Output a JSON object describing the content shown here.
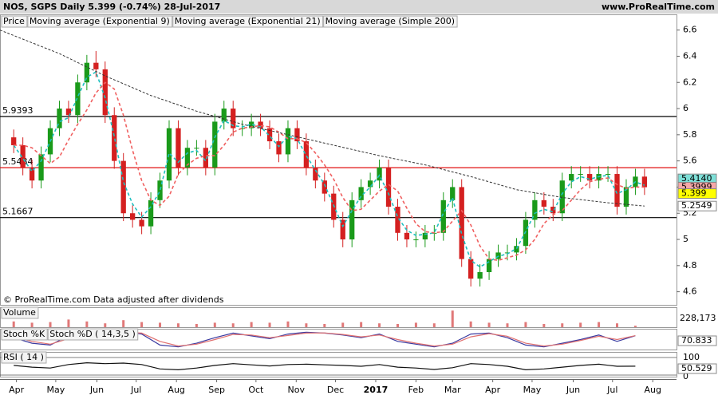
{
  "header": {
    "symbol_line": "NOS, SGPS   Daily   5.399 (-0.74%)   28-Jul-2017",
    "site": "www.ProRealTime.com"
  },
  "chart_data": [
    {
      "type": "candlestick",
      "name": "Price",
      "note": "© ProRealTime.com  Data adjusted after dividends",
      "up_color": "#1a9a1a",
      "down_color": "#d42020",
      "x": [
        0,
        1,
        2,
        3,
        4,
        5,
        6,
        7,
        8,
        9,
        10,
        11,
        12,
        13,
        14,
        15,
        16,
        17,
        18,
        19,
        20,
        21,
        22,
        23,
        24,
        25,
        26,
        27,
        28,
        29,
        30,
        31,
        32,
        33,
        34,
        35,
        36,
        37,
        38,
        39,
        40,
        41,
        42,
        43,
        44,
        45,
        46,
        47,
        48,
        49,
        50,
        51,
        52,
        53,
        54,
        55,
        56,
        57,
        58,
        59,
        60,
        61,
        62,
        63,
        64,
        65,
        66,
        67,
        68,
        69
      ],
      "open": [
        5.78,
        5.72,
        5.55,
        5.45,
        5.65,
        5.85,
        6.0,
        5.95,
        6.2,
        6.35,
        6.3,
        5.95,
        5.6,
        5.2,
        5.15,
        5.1,
        5.3,
        5.45,
        5.85,
        5.55,
        5.7,
        5.7,
        5.55,
        5.9,
        6.0,
        5.85,
        5.85,
        5.9,
        5.85,
        5.75,
        5.65,
        5.85,
        5.75,
        5.55,
        5.45,
        5.35,
        5.15,
        5.0,
        5.3,
        5.4,
        5.45,
        5.55,
        5.25,
        5.05,
        5.0,
        5.0,
        5.05,
        5.05,
        5.3,
        5.4,
        4.85,
        4.7,
        4.75,
        4.85,
        4.9,
        4.9,
        4.95,
        5.15,
        5.3,
        5.25,
        5.2,
        5.45,
        5.5,
        5.5,
        5.45,
        5.5,
        5.5,
        5.25,
        5.4,
        5.48
      ],
      "high": [
        5.84,
        5.78,
        5.61,
        5.71,
        5.91,
        6.06,
        6.06,
        6.26,
        6.41,
        6.44,
        6.36,
        6.01,
        5.66,
        5.26,
        5.21,
        5.36,
        5.51,
        5.91,
        5.91,
        5.76,
        5.76,
        5.76,
        5.96,
        6.06,
        6.06,
        5.91,
        5.96,
        5.96,
        5.91,
        5.81,
        5.91,
        5.91,
        5.81,
        5.61,
        5.51,
        5.41,
        5.21,
        5.36,
        5.46,
        5.51,
        5.61,
        5.61,
        5.31,
        5.11,
        5.06,
        5.11,
        5.11,
        5.36,
        5.46,
        5.46,
        4.91,
        4.81,
        4.91,
        4.96,
        4.96,
        5.01,
        5.21,
        5.36,
        5.36,
        5.31,
        5.51,
        5.56,
        5.56,
        5.56,
        5.56,
        5.56,
        5.56,
        5.46,
        5.54,
        5.54
      ],
      "low": [
        5.66,
        5.49,
        5.39,
        5.39,
        5.59,
        5.79,
        5.89,
        5.89,
        6.14,
        6.24,
        5.89,
        5.54,
        5.14,
        5.09,
        5.04,
        5.04,
        5.24,
        5.39,
        5.49,
        5.49,
        5.64,
        5.49,
        5.49,
        5.84,
        5.79,
        5.79,
        5.79,
        5.79,
        5.69,
        5.59,
        5.59,
        5.69,
        5.49,
        5.39,
        5.29,
        5.09,
        4.94,
        4.94,
        5.24,
        5.34,
        5.39,
        5.19,
        4.99,
        4.94,
        4.94,
        4.94,
        4.99,
        4.99,
        5.24,
        4.79,
        4.64,
        4.64,
        4.69,
        4.79,
        4.84,
        4.84,
        4.89,
        5.09,
        5.19,
        5.14,
        5.14,
        5.39,
        5.44,
        5.39,
        5.39,
        5.44,
        5.19,
        5.19,
        5.34,
        5.34
      ],
      "close": [
        5.72,
        5.55,
        5.45,
        5.65,
        5.85,
        6.0,
        5.95,
        6.2,
        6.35,
        6.3,
        5.95,
        5.6,
        5.2,
        5.15,
        5.1,
        5.3,
        5.45,
        5.85,
        5.55,
        5.7,
        5.7,
        5.55,
        5.9,
        6.0,
        5.85,
        5.85,
        5.9,
        5.85,
        5.75,
        5.65,
        5.85,
        5.75,
        5.55,
        5.45,
        5.35,
        5.15,
        5.0,
        5.3,
        5.4,
        5.45,
        5.55,
        5.25,
        5.05,
        5.0,
        5.0,
        5.05,
        5.05,
        5.3,
        5.4,
        4.85,
        4.7,
        4.75,
        4.85,
        4.9,
        4.9,
        4.95,
        5.15,
        5.3,
        5.25,
        5.2,
        5.45,
        5.5,
        5.5,
        5.45,
        5.5,
        5.5,
        5.25,
        5.4,
        5.48,
        5.399
      ],
      "series": [
        {
          "name": "Moving average (Exponential 9)",
          "color": "#20c0c0",
          "label_fill": "#7ee0d8",
          "last_label": "5.4140",
          "x": [
            0,
            1,
            2,
            3,
            4,
            5,
            6,
            7,
            8,
            9,
            10,
            11,
            12,
            13,
            14,
            15,
            16,
            17,
            18,
            19,
            20,
            21,
            22,
            23,
            24,
            25,
            26,
            27,
            28,
            29,
            30,
            31,
            32,
            33,
            34,
            35,
            36,
            37,
            38,
            39,
            40,
            41,
            42,
            43,
            44,
            45,
            46,
            47,
            48,
            49,
            50,
            51,
            52,
            53,
            54,
            55,
            56,
            57,
            58,
            59,
            60,
            61,
            62,
            63,
            64,
            65,
            66,
            67,
            68,
            69
          ],
          "values": [
            5.72,
            5.62,
            5.52,
            5.6,
            5.75,
            5.9,
            5.93,
            6.09,
            6.24,
            6.28,
            6.08,
            5.79,
            5.44,
            5.27,
            5.17,
            5.25,
            5.37,
            5.66,
            5.59,
            5.66,
            5.68,
            5.6,
            5.78,
            5.91,
            5.87,
            5.86,
            5.88,
            5.86,
            5.79,
            5.71,
            5.79,
            5.77,
            5.64,
            5.53,
            5.42,
            5.26,
            5.1,
            5.22,
            5.33,
            5.4,
            5.49,
            5.35,
            5.17,
            5.07,
            5.03,
            5.04,
            5.05,
            5.2,
            5.32,
            5.04,
            4.84,
            4.79,
            4.83,
            4.87,
            4.89,
            4.93,
            5.06,
            5.2,
            5.23,
            5.21,
            5.35,
            5.44,
            5.48,
            5.46,
            5.48,
            5.49,
            5.35,
            5.38,
            5.44,
            5.414
          ]
        },
        {
          "name": "Moving average (Exponential 21)",
          "color": "#f06060",
          "label_fill": "#f5a8a8",
          "last_label": "5.3999",
          "x": [
            0,
            1,
            2,
            3,
            4,
            5,
            6,
            7,
            8,
            9,
            10,
            11,
            12,
            13,
            14,
            15,
            16,
            17,
            18,
            19,
            20,
            21,
            22,
            23,
            24,
            25,
            26,
            27,
            28,
            29,
            30,
            31,
            32,
            33,
            34,
            35,
            36,
            37,
            38,
            39,
            40,
            41,
            42,
            43,
            44,
            45,
            46,
            47,
            48,
            49,
            50,
            51,
            52,
            53,
            54,
            55,
            56,
            57,
            58,
            59,
            60,
            61,
            62,
            63,
            64,
            65,
            66,
            67,
            68,
            69
          ],
          "values": [
            5.72,
            5.72,
            5.7,
            5.64,
            5.58,
            5.63,
            5.76,
            5.88,
            5.99,
            6.12,
            6.2,
            6.15,
            5.95,
            5.68,
            5.45,
            5.3,
            5.26,
            5.33,
            5.5,
            5.57,
            5.62,
            5.64,
            5.64,
            5.72,
            5.82,
            5.85,
            5.86,
            5.87,
            5.86,
            5.82,
            5.77,
            5.77,
            5.74,
            5.66,
            5.57,
            5.46,
            5.32,
            5.22,
            5.23,
            5.3,
            5.37,
            5.42,
            5.37,
            5.24,
            5.12,
            5.06,
            5.05,
            5.06,
            5.14,
            5.22,
            5.11,
            4.95,
            4.85,
            4.84,
            4.86,
            4.88,
            4.92,
            5.0,
            5.12,
            5.19,
            5.22,
            5.3,
            5.38,
            5.44,
            5.46,
            5.47,
            5.42,
            5.39,
            5.4,
            5.3999
          ]
        },
        {
          "name": "Moving average (Simple 200)",
          "color": "#333333",
          "label_fill": "#ffffff",
          "dashed": true,
          "last_label": "5.2549",
          "x": [
            -1.5,
            5,
            10,
            15,
            20,
            25,
            30,
            35,
            40,
            45,
            50,
            55,
            60,
            65,
            69
          ],
          "values": [
            6.6,
            6.42,
            6.25,
            6.1,
            5.98,
            5.88,
            5.8,
            5.72,
            5.64,
            5.57,
            5.48,
            5.38,
            5.32,
            5.28,
            5.2549
          ]
        }
      ],
      "levels": [
        {
          "value": 5.9393,
          "color": "#000000"
        },
        {
          "value": 5.5484,
          "color": "#e01010"
        },
        {
          "value": 5.1667,
          "color": "#000000"
        }
      ],
      "xlim": [
        -1.5,
        72.5
      ],
      "xticks": [
        {
          "value": 0.3,
          "label": "Apr"
        },
        {
          "value": 4.6,
          "label": "May"
        },
        {
          "value": 9.1,
          "label": "Jun"
        },
        {
          "value": 13.4,
          "label": "Jul"
        },
        {
          "value": 17.8,
          "label": "Aug"
        },
        {
          "value": 22.2,
          "label": "Sep"
        },
        {
          "value": 26.5,
          "label": "Oct"
        },
        {
          "value": 30.9,
          "label": "Nov"
        },
        {
          "value": 35.2,
          "label": "Dec"
        },
        {
          "value": 39.6,
          "label": "2017"
        },
        {
          "value": 44.0,
          "label": "Feb"
        },
        {
          "value": 48.0,
          "label": "Mar"
        },
        {
          "value": 52.4,
          "label": "Apr"
        },
        {
          "value": 56.7,
          "label": "May"
        },
        {
          "value": 61.2,
          "label": "Jun"
        },
        {
          "value": 65.5,
          "label": "Jul"
        },
        {
          "value": 69.9,
          "label": "Aug"
        }
      ],
      "ylim": [
        4.5,
        6.72
      ],
      "yticks": [
        4.6,
        4.8,
        5,
        5.2,
        5.4,
        5.6,
        5.8,
        6,
        6.2,
        6.4,
        6.6
      ]
    },
    {
      "type": "bar",
      "name": "Volume",
      "color": "#e07878",
      "x": [
        0,
        2,
        4,
        6,
        8,
        10,
        12,
        14,
        16,
        18,
        20,
        22,
        24,
        26,
        28,
        30,
        32,
        34,
        36,
        38,
        40,
        42,
        44,
        46,
        48,
        50,
        52,
        54,
        56,
        58,
        60,
        62,
        64,
        66,
        68
      ],
      "values": [
        900000,
        700000,
        800000,
        1200000,
        900000,
        600000,
        1100000,
        800000,
        700000,
        600000,
        500000,
        700000,
        600000,
        800000,
        700000,
        900000,
        600000,
        500000,
        700000,
        800000,
        600000,
        500000,
        700000,
        600000,
        2600000,
        900000,
        700000,
        600000,
        800000,
        500000,
        600000,
        700000,
        800000,
        600000,
        228173
      ],
      "value_labels": [
        null,
        null,
        null,
        null,
        null,
        null,
        null,
        null,
        null,
        null,
        null,
        null,
        null,
        null,
        null,
        null,
        null,
        null,
        null,
        null,
        null,
        null,
        null,
        null,
        null,
        null,
        null,
        null,
        null,
        null,
        null,
        null,
        null,
        null,
        "228,173"
      ],
      "ylim": [
        0,
        3000000
      ]
    },
    {
      "type": "line",
      "ylim": [
        0,
        100
      ],
      "series": [
        {
          "name": "Stoch %K",
          "color": "#3a3aa0",
          "x": [
            0,
            2,
            4,
            6,
            8,
            10,
            12,
            14,
            16,
            18,
            20,
            22,
            24,
            26,
            28,
            30,
            32,
            34,
            36,
            38,
            40,
            42,
            44,
            46,
            48,
            50,
            52,
            54,
            56,
            58,
            60,
            62,
            64,
            66,
            68
          ],
          "values": [
            60,
            30,
            20,
            70,
            90,
            85,
            95,
            80,
            20,
            10,
            30,
            60,
            85,
            70,
            55,
            80,
            90,
            85,
            75,
            60,
            80,
            40,
            25,
            10,
            30,
            80,
            85,
            60,
            20,
            10,
            30,
            50,
            75,
            40,
            70.833
          ]
        },
        {
          "name": "Stoch %D ( 14,3,5 )",
          "color": "#e07070",
          "x": [
            0,
            2,
            4,
            6,
            8,
            10,
            12,
            14,
            16,
            18,
            20,
            22,
            24,
            26,
            28,
            30,
            32,
            34,
            36,
            38,
            40,
            42,
            44,
            46,
            48,
            50,
            52,
            54,
            56,
            58,
            60,
            62,
            64,
            66,
            68
          ],
          "values": [
            65,
            40,
            25,
            55,
            80,
            88,
            90,
            85,
            40,
            15,
            25,
            50,
            78,
            75,
            60,
            72,
            85,
            86,
            78,
            65,
            75,
            50,
            30,
            15,
            25,
            65,
            82,
            68,
            30,
            15,
            25,
            45,
            68,
            50,
            71.289
          ]
        }
      ]
    },
    {
      "type": "line",
      "ylim": [
        0,
        100
      ],
      "yticks": [
        0,
        100
      ],
      "series": [
        {
          "name": "RSI ( 14 )",
          "color": "#111111",
          "x": [
            0,
            2,
            4,
            6,
            8,
            10,
            12,
            14,
            16,
            18,
            20,
            22,
            24,
            26,
            28,
            30,
            32,
            34,
            36,
            38,
            40,
            42,
            44,
            46,
            48,
            50,
            52,
            54,
            56,
            58,
            60,
            62,
            64,
            66,
            68
          ],
          "values": [
            55,
            45,
            40,
            60,
            70,
            65,
            68,
            60,
            35,
            30,
            40,
            55,
            65,
            58,
            52,
            60,
            62,
            58,
            55,
            50,
            60,
            45,
            40,
            32,
            42,
            65,
            60,
            50,
            30,
            35,
            45,
            55,
            62,
            50,
            50.529
          ]
        }
      ]
    }
  ]
}
